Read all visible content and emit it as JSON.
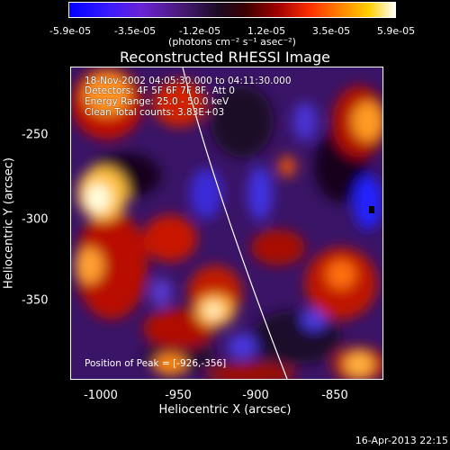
{
  "colorbar": {
    "ticks": [
      "-5.9e-05",
      "-3.5e-05",
      "-1.2e-05",
      "1.2e-05",
      "3.5e-05",
      "5.9e-05"
    ],
    "units": "(photons cm⁻² s⁻¹ asec⁻²)"
  },
  "title": "Reconstructed RHESSI Image",
  "info": {
    "time": "18-Nov-2002 04:05:30.000 to 04:11:30.000",
    "detectors": "Detectors: 4F 5F 6F 7F 8F, Att 0",
    "energy": "Energy Range: 25.0 - 50.0 keV",
    "clean": "Clean     Total counts: 3.83E+03"
  },
  "peak": "Position of Peak = [-926,-356]",
  "axes": {
    "xlabel": "Heliocentric X (arcsec)",
    "ylabel": "Heliocentric Y (arcsec)",
    "xticks": [
      "-1000",
      "-950",
      "-900",
      "-850"
    ],
    "yticks": [
      "-250",
      "-300",
      "-350"
    ]
  },
  "timestamp": "16-Apr-2013 22:15"
}
